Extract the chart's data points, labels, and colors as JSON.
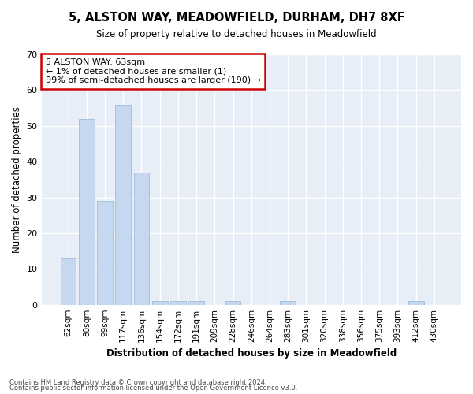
{
  "title_line1": "5, ALSTON WAY, MEADOWFIELD, DURHAM, DH7 8XF",
  "title_line2": "Size of property relative to detached houses in Meadowfield",
  "xlabel": "Distribution of detached houses by size in Meadowfield",
  "ylabel": "Number of detached properties",
  "categories": [
    "62sqm",
    "80sqm",
    "99sqm",
    "117sqm",
    "136sqm",
    "154sqm",
    "172sqm",
    "191sqm",
    "209sqm",
    "228sqm",
    "246sqm",
    "264sqm",
    "283sqm",
    "301sqm",
    "320sqm",
    "338sqm",
    "356sqm",
    "375sqm",
    "393sqm",
    "412sqm",
    "430sqm"
  ],
  "values": [
    13,
    52,
    29,
    56,
    37,
    1,
    1,
    1,
    0,
    1,
    0,
    0,
    1,
    0,
    0,
    0,
    0,
    0,
    0,
    1,
    0
  ],
  "bar_color": "#c5d8f0",
  "bar_edge_color": "#a0bcd8",
  "ylim": [
    0,
    70
  ],
  "yticks": [
    0,
    10,
    20,
    30,
    40,
    50,
    60,
    70
  ],
  "annotation_text": "5 ALSTON WAY: 63sqm\n← 1% of detached houses are smaller (1)\n99% of semi-detached houses are larger (190) →",
  "annotation_box_color": "#ffffff",
  "annotation_box_edge": "#cc0000",
  "plot_bg_color": "#e8eef8",
  "fig_bg_color": "#ffffff",
  "grid_color": "#ffffff",
  "footer_line1": "Contains HM Land Registry data © Crown copyright and database right 2024.",
  "footer_line2": "Contains public sector information licensed under the Open Government Licence v3.0."
}
